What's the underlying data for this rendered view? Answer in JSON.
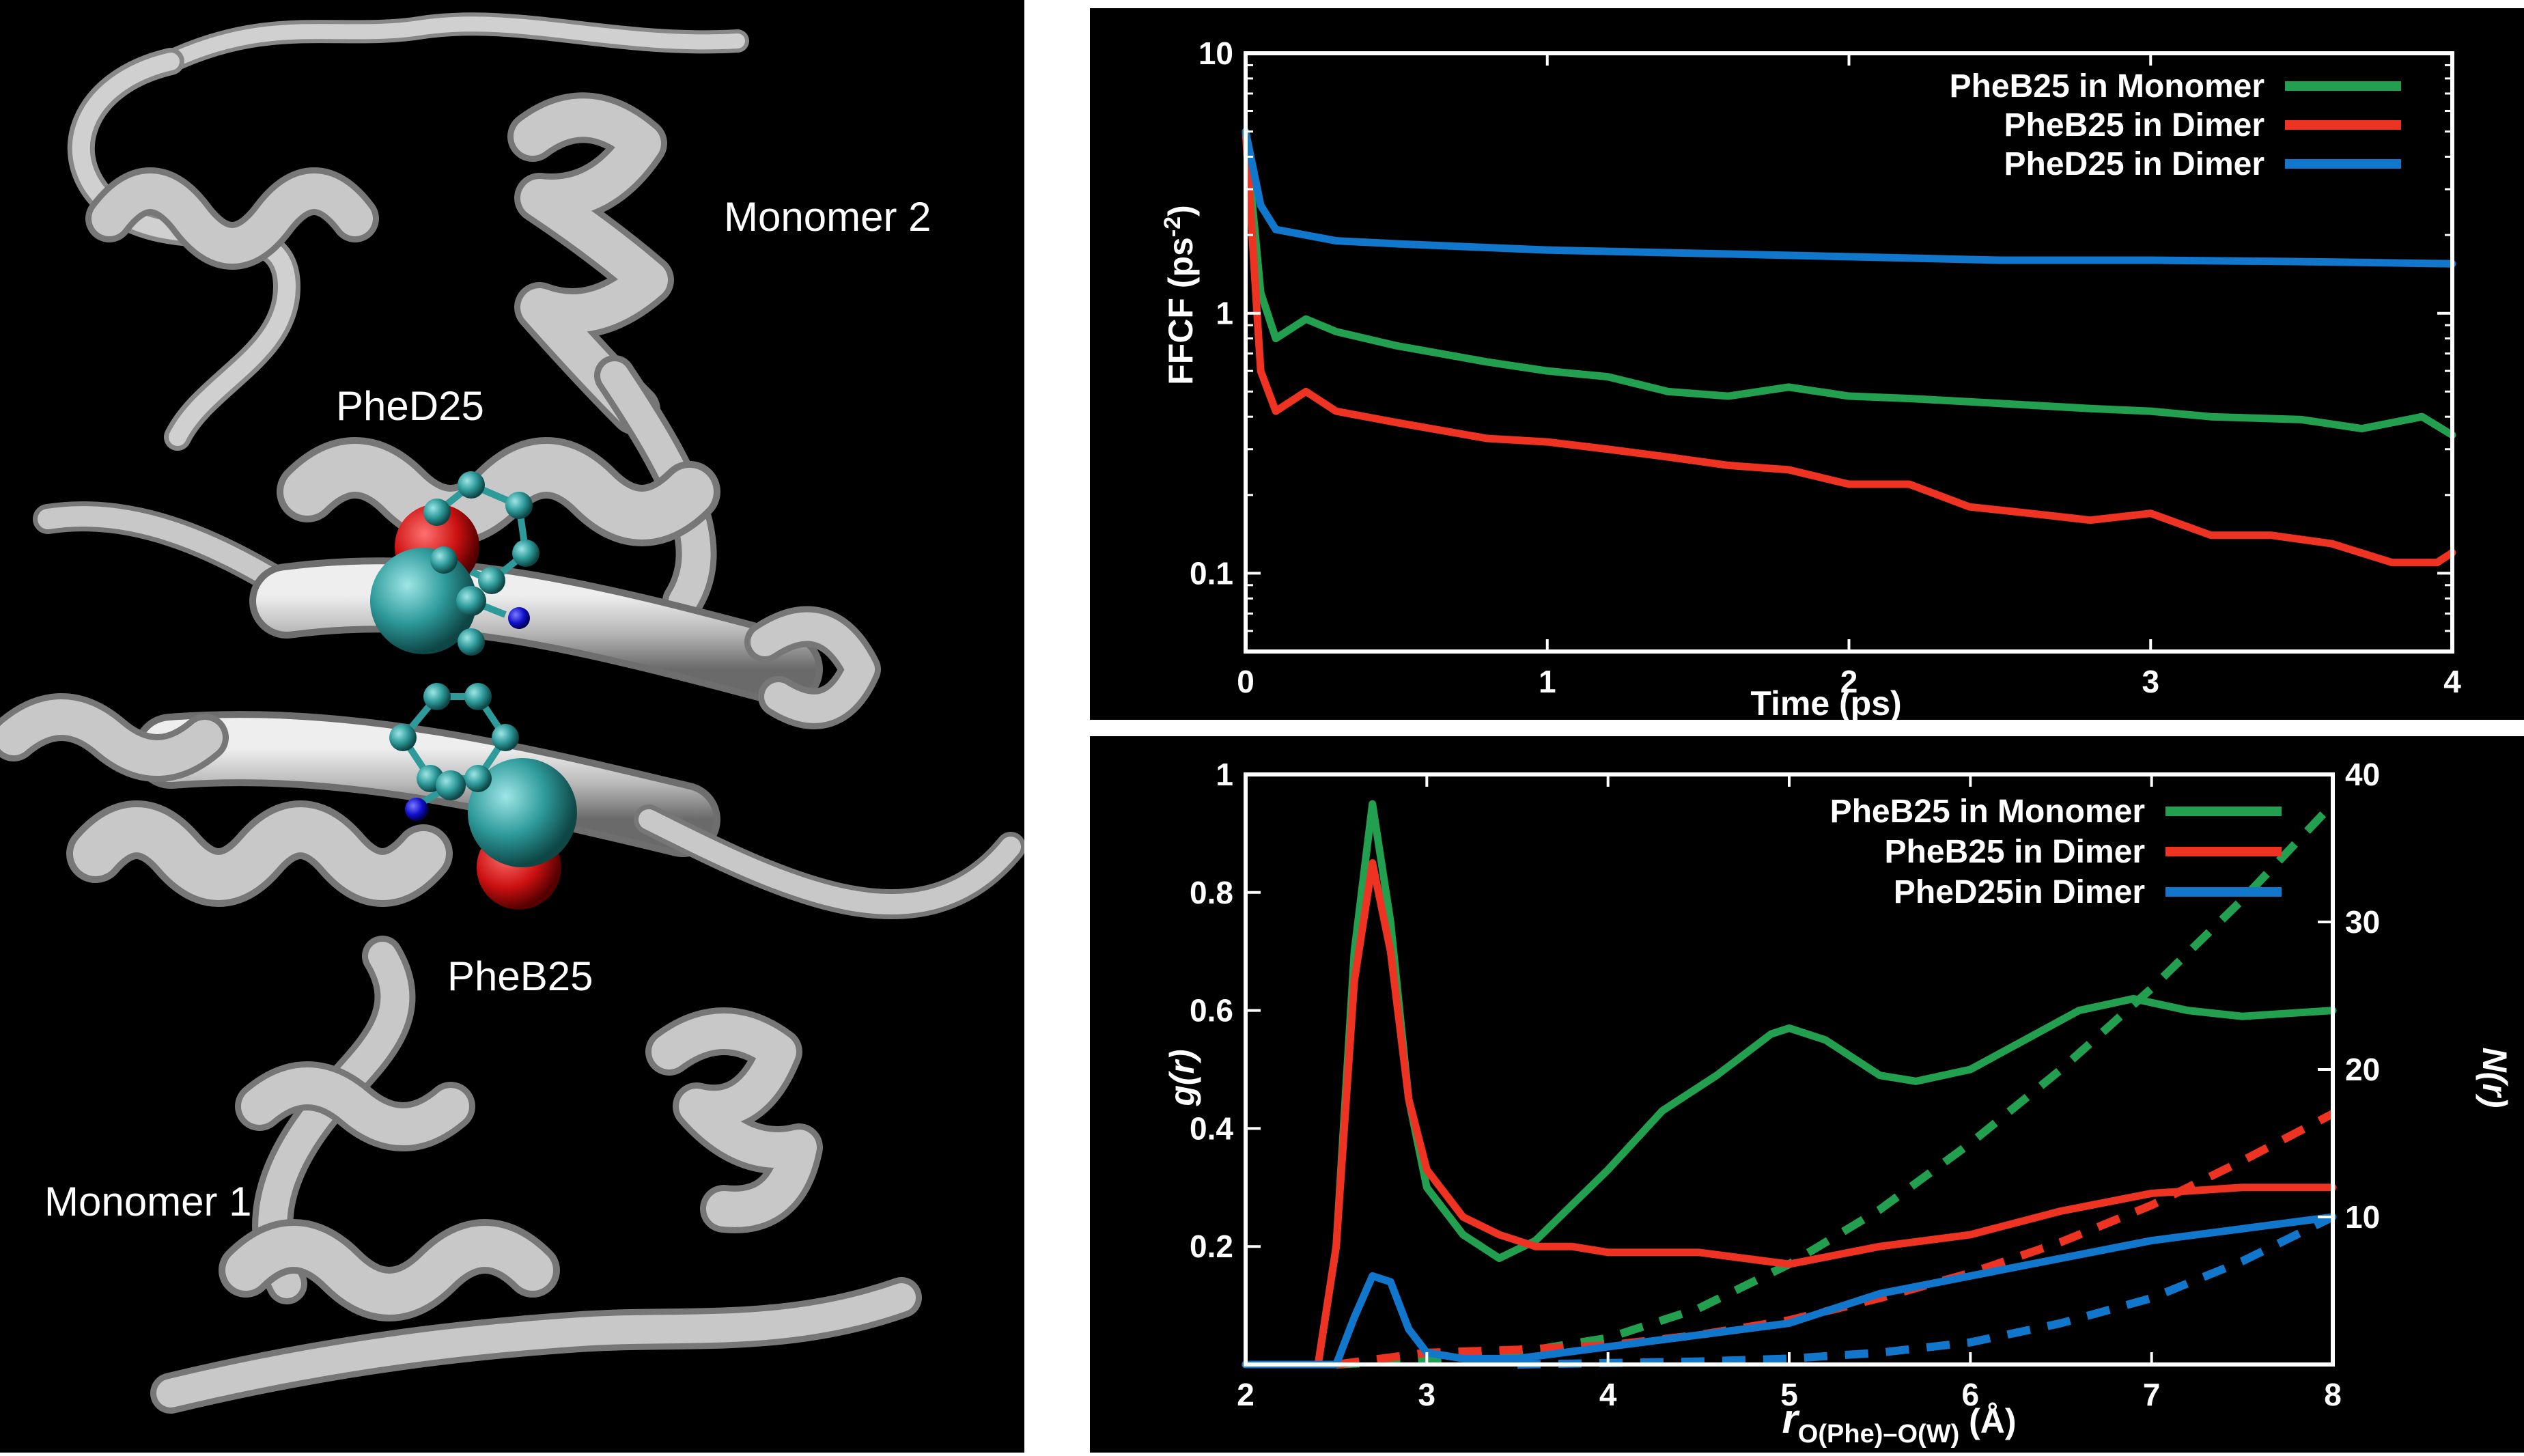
{
  "protein": {
    "labels": {
      "monomer2": "Monomer 2",
      "monomer1": "Monomer 1",
      "phe_d25": "PheD25",
      "phe_b25": "PheB25"
    },
    "colors": {
      "ribbon": "#b8b8b8",
      "oxygen": "#cc1111",
      "carbon": "#2e9a9a",
      "nitrogen": "#1010cc"
    }
  },
  "chart_data": [
    {
      "type": "line",
      "xlabel": "Time (ps)",
      "ylabel": "FFCF (ps",
      "ylabel_sup": "-2",
      "ylabel_end": ")",
      "xlim": [
        0,
        4
      ],
      "ylim": [
        0.05,
        10
      ],
      "yscale": "log",
      "xticks": [
        "0",
        "1",
        "2",
        "3",
        "4"
      ],
      "xtick_values": [
        0,
        1,
        2,
        3,
        4
      ],
      "yticks": [
        "0.1",
        "1",
        "10"
      ],
      "ytick_values": [
        0.1,
        1,
        10
      ],
      "legend_position": "top-right",
      "series": [
        {
          "name": "PheB25 in Monomer",
          "color": "#22a050",
          "x": [
            0,
            0.05,
            0.1,
            0.2,
            0.3,
            0.5,
            0.8,
            1.0,
            1.2,
            1.4,
            1.6,
            1.8,
            2.0,
            2.2,
            2.5,
            2.8,
            3.0,
            3.2,
            3.5,
            3.7,
            3.9,
            4.0
          ],
          "y": [
            5.0,
            1.2,
            0.8,
            0.95,
            0.85,
            0.75,
            0.65,
            0.6,
            0.57,
            0.5,
            0.48,
            0.52,
            0.48,
            0.47,
            0.45,
            0.43,
            0.42,
            0.4,
            0.39,
            0.36,
            0.4,
            0.34
          ]
        },
        {
          "name": "PheB25 in Dimer",
          "color": "#ee3322",
          "x": [
            0,
            0.05,
            0.1,
            0.2,
            0.3,
            0.5,
            0.8,
            1.0,
            1.2,
            1.4,
            1.6,
            1.8,
            2.0,
            2.2,
            2.4,
            2.6,
            2.8,
            3.0,
            3.2,
            3.4,
            3.6,
            3.8,
            3.95,
            4.0
          ],
          "y": [
            5.0,
            0.6,
            0.42,
            0.5,
            0.42,
            0.38,
            0.33,
            0.32,
            0.3,
            0.28,
            0.26,
            0.25,
            0.22,
            0.22,
            0.18,
            0.17,
            0.16,
            0.17,
            0.14,
            0.14,
            0.13,
            0.11,
            0.11,
            0.12
          ]
        },
        {
          "name": "PheD25 in Dimer",
          "color": "#1177cc",
          "x": [
            0,
            0.05,
            0.1,
            0.3,
            0.5,
            1.0,
            1.5,
            2.0,
            2.5,
            3.0,
            3.5,
            4.0
          ],
          "y": [
            5.0,
            2.6,
            2.1,
            1.9,
            1.85,
            1.75,
            1.7,
            1.65,
            1.6,
            1.6,
            1.58,
            1.55
          ]
        }
      ]
    },
    {
      "type": "line",
      "xlabel": "r",
      "xlabel_sub": "O(Phe)–O(W)",
      "xlabel_end": " (Å)",
      "ylabel": "g(r)",
      "y2label": "N(r)",
      "xlim": [
        2,
        8
      ],
      "ylim": [
        0,
        1
      ],
      "y2lim": [
        0,
        40
      ],
      "xticks": [
        "2",
        "3",
        "4",
        "5",
        "6",
        "7",
        "8"
      ],
      "xtick_values": [
        2,
        3,
        4,
        5,
        6,
        7,
        8
      ],
      "yticks": [
        "0.2",
        "0.4",
        "0.6",
        "0.8",
        "1"
      ],
      "ytick_values": [
        0.2,
        0.4,
        0.6,
        0.8,
        1
      ],
      "y2ticks": [
        "10",
        "20",
        "30",
        "40"
      ],
      "y2tick_values": [
        10,
        20,
        30,
        40
      ],
      "legend_position": "top-right",
      "series": [
        {
          "name": "PheB25 in Monomer",
          "color": "#22a050",
          "x": [
            2.0,
            2.4,
            2.5,
            2.6,
            2.7,
            2.8,
            2.9,
            3.0,
            3.2,
            3.4,
            3.6,
            3.8,
            4.0,
            4.3,
            4.6,
            4.9,
            5.0,
            5.2,
            5.5,
            5.7,
            6.0,
            6.3,
            6.6,
            6.9,
            7.2,
            7.5,
            8.0
          ],
          "y": [
            0.0,
            0.0,
            0.2,
            0.7,
            0.95,
            0.75,
            0.45,
            0.3,
            0.22,
            0.18,
            0.21,
            0.27,
            0.33,
            0.43,
            0.49,
            0.56,
            0.57,
            0.55,
            0.49,
            0.48,
            0.5,
            0.55,
            0.6,
            0.62,
            0.6,
            0.59,
            0.6
          ]
        },
        {
          "name": "PheB25 in Dimer",
          "color": "#ee3322",
          "x": [
            2.0,
            2.4,
            2.5,
            2.6,
            2.7,
            2.8,
            2.9,
            3.0,
            3.2,
            3.4,
            3.6,
            3.8,
            4.0,
            4.5,
            5.0,
            5.5,
            6.0,
            6.5,
            7.0,
            7.5,
            8.0
          ],
          "y": [
            0.0,
            0.0,
            0.2,
            0.65,
            0.85,
            0.7,
            0.45,
            0.33,
            0.25,
            0.22,
            0.2,
            0.2,
            0.19,
            0.19,
            0.17,
            0.2,
            0.22,
            0.26,
            0.29,
            0.3,
            0.3
          ]
        },
        {
          "name": "PheD25in Dimer",
          "color": "#1177cc",
          "x": [
            2.0,
            2.5,
            2.6,
            2.7,
            2.8,
            2.9,
            3.0,
            3.2,
            3.5,
            4.0,
            4.5,
            5.0,
            5.5,
            6.0,
            6.5,
            7.0,
            7.5,
            8.0
          ],
          "y": [
            0.0,
            0.0,
            0.08,
            0.15,
            0.14,
            0.06,
            0.02,
            0.01,
            0.01,
            0.03,
            0.05,
            0.07,
            0.12,
            0.15,
            0.18,
            0.21,
            0.23,
            0.25
          ]
        }
      ],
      "cumulative_series": [
        {
          "name": "PheB25 in Monomer",
          "color": "#22a050",
          "axis": "y2",
          "style": "dashed",
          "x": [
            2.5,
            3.0,
            3.5,
            4.0,
            4.5,
            5.0,
            5.5,
            6.0,
            6.5,
            7.0,
            7.5,
            8.0
          ],
          "y": [
            0.0,
            0.3,
            0.8,
            1.8,
            3.8,
            6.8,
            10.5,
            15.0,
            20.0,
            25.5,
            31.5,
            38.0
          ]
        },
        {
          "name": "PheB25 in Dimer",
          "color": "#ee3322",
          "axis": "y2",
          "style": "dashed",
          "x": [
            2.5,
            3.0,
            3.5,
            4.0,
            4.5,
            5.0,
            5.5,
            6.0,
            6.5,
            7.0,
            7.5,
            8.0
          ],
          "y": [
            0.0,
            0.8,
            1.0,
            1.3,
            2.0,
            3.0,
            4.5,
            6.2,
            8.3,
            10.8,
            13.8,
            17.0
          ]
        },
        {
          "name": "PheD25in Dimer",
          "color": "#1177cc",
          "axis": "y2",
          "style": "dashed",
          "x": [
            3.5,
            4.0,
            4.5,
            5.0,
            5.5,
            6.0,
            6.5,
            7.0,
            7.5,
            8.0
          ],
          "y": [
            0.0,
            0.1,
            0.2,
            0.4,
            0.8,
            1.5,
            2.8,
            4.5,
            7.0,
            10.0
          ]
        }
      ]
    }
  ]
}
